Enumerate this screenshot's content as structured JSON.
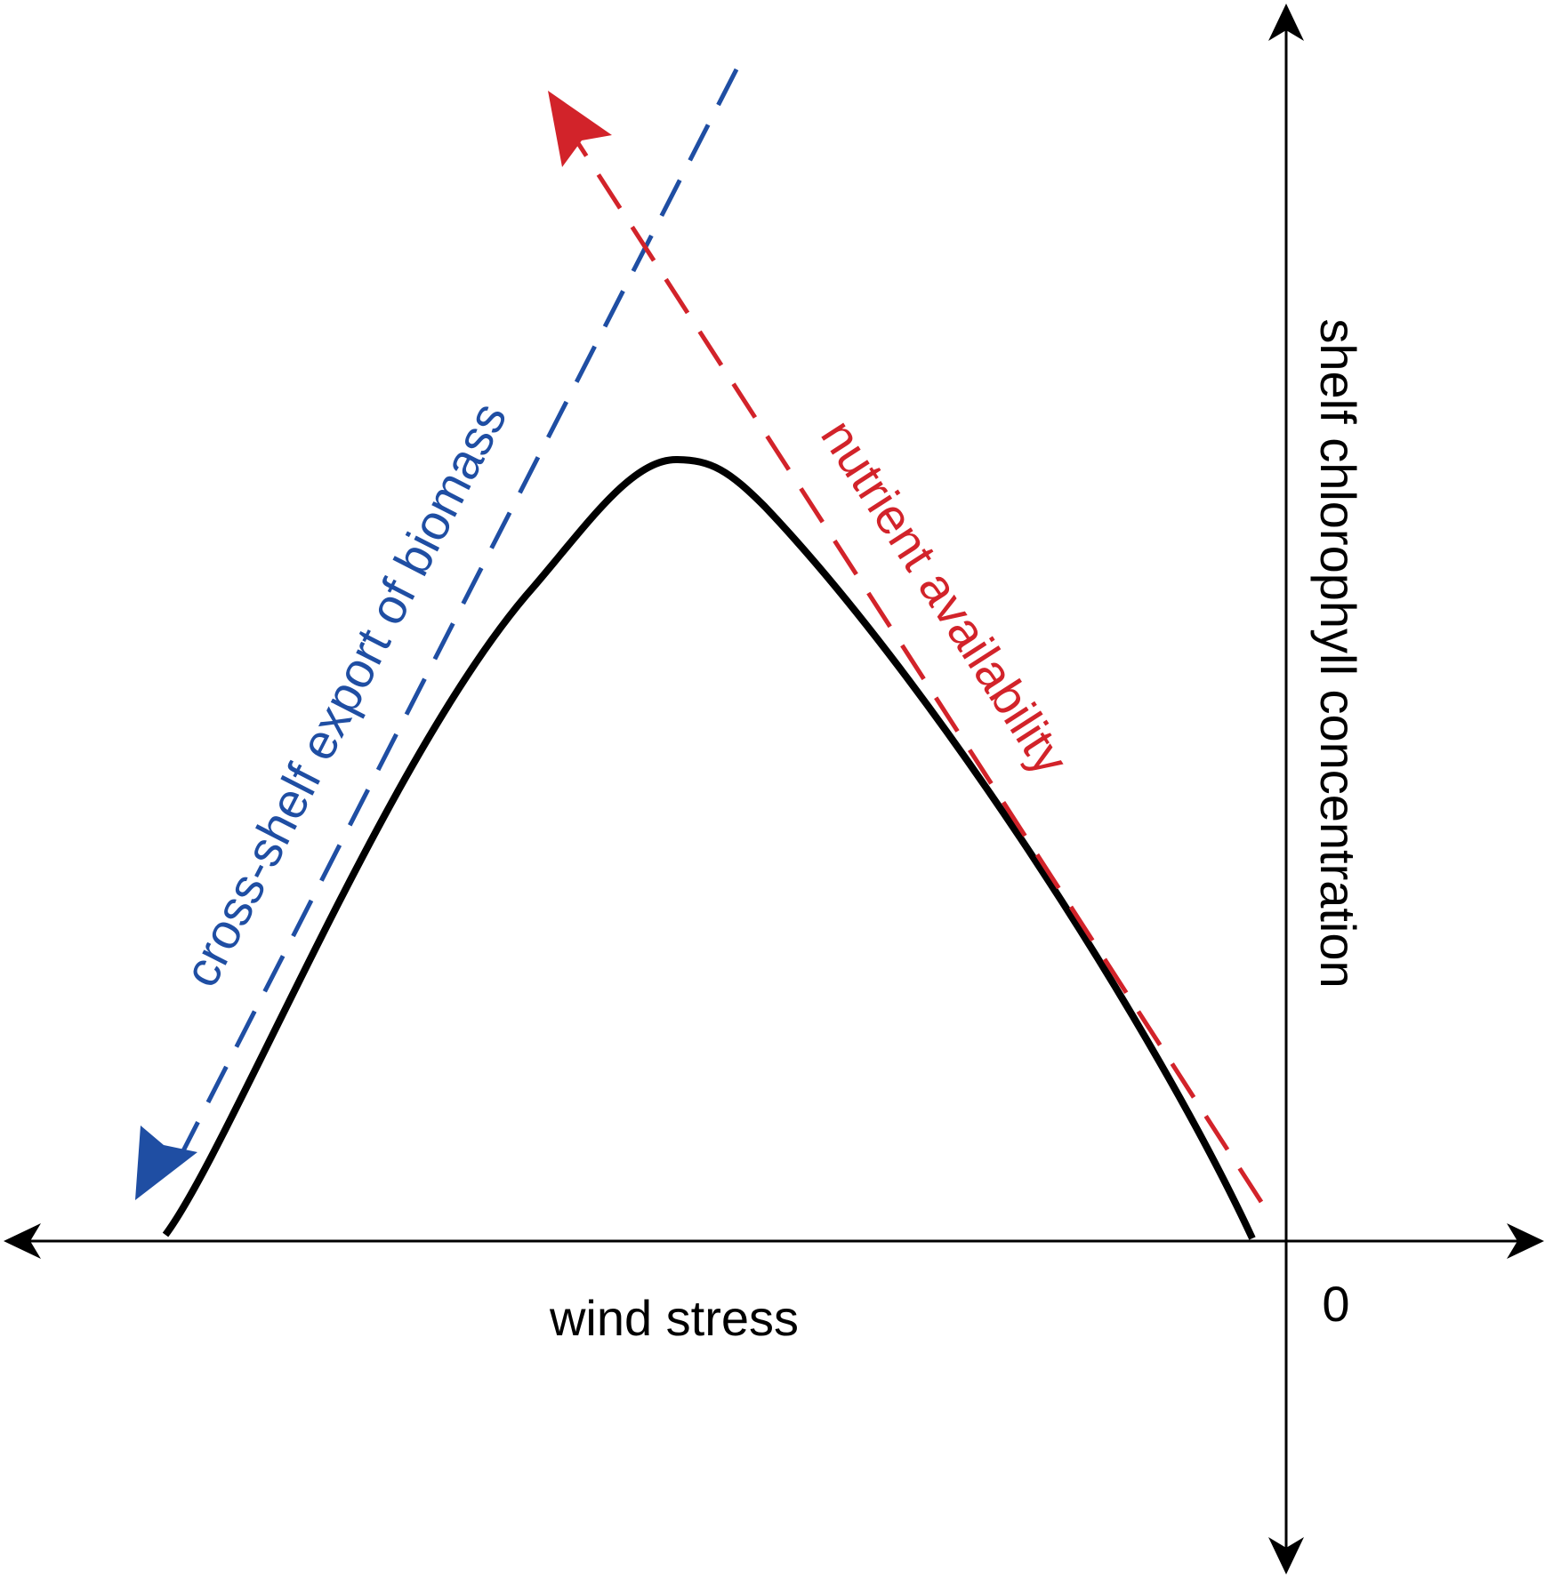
{
  "x_axis_label": "wind stress",
  "y_axis_label": "shelf chlorophyll concentration",
  "origin_label": "0",
  "blue_trend_label": "cross-shelf export of biomass",
  "red_trend_label": "nutrient availability",
  "colors": {
    "blue": "#1f4ea3",
    "red": "#d2232a",
    "curve": "#000000"
  }
}
